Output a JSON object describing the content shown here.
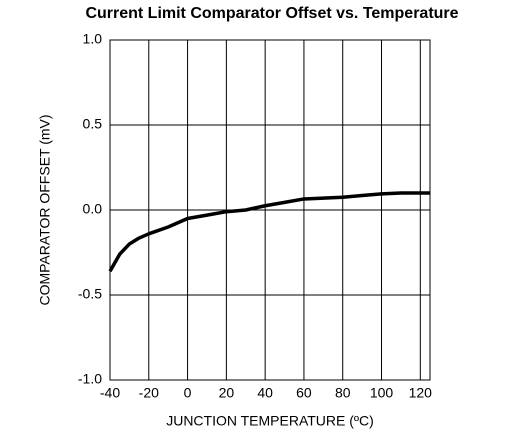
{
  "chart_data": {
    "type": "line",
    "title": "Current Limit Comparator Offset vs. Temperature",
    "xlabel": "JUNCTION TEMPERATURE (ºC)",
    "ylabel": "COMPARATOR OFFSET (mV)",
    "x": [
      -40,
      -35,
      -30,
      -25,
      -20,
      -10,
      0,
      10,
      20,
      30,
      40,
      50,
      60,
      70,
      80,
      90,
      100,
      110,
      125
    ],
    "series": [
      {
        "color": "#000000",
        "values": [
          -0.36,
          -0.26,
          -0.2,
          -0.165,
          -0.14,
          -0.1,
          -0.05,
          -0.03,
          -0.01,
          0.0,
          0.025,
          0.045,
          0.065,
          0.07,
          0.075,
          0.085,
          0.095,
          0.1,
          0.1
        ]
      }
    ],
    "xlim": [
      -40,
      125
    ],
    "ylim": [
      -1,
      1
    ],
    "xticks": [
      -40,
      -20,
      0,
      20,
      40,
      60,
      80,
      100,
      120
    ],
    "yticks": [
      {
        "value": -1,
        "label": "-1.0"
      },
      {
        "value": -0.5,
        "label": "-0.5"
      },
      {
        "value": 0,
        "label": "0.0"
      },
      {
        "value": 0.5,
        "label": "0.5"
      },
      {
        "value": 1,
        "label": "1.0"
      }
    ],
    "grid": true
  }
}
